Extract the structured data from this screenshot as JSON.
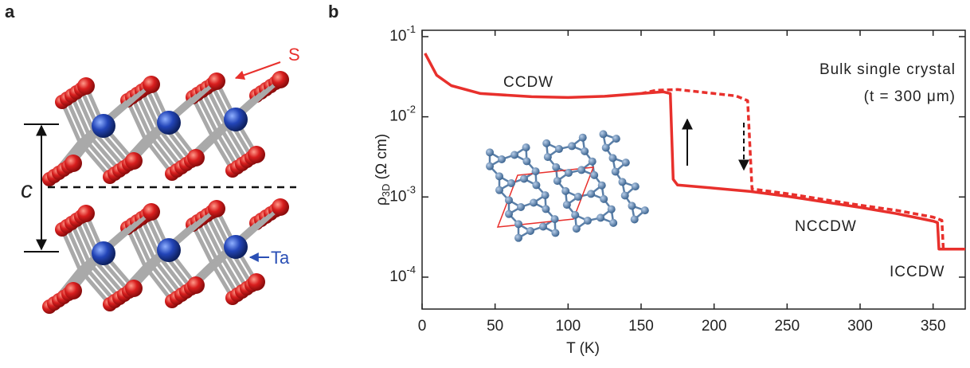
{
  "panel_a": {
    "label": "a",
    "atom_s": "S",
    "atom_ta": "Ta",
    "axis_c": "c"
  },
  "chart_data": {
    "type": "line",
    "panel_label": "b",
    "x_label": "T (K)",
    "y_label": "ρ_3D (Ω cm)",
    "xlim": [
      0,
      372
    ],
    "xticks": [
      0,
      50,
      100,
      150,
      200,
      250,
      300,
      350
    ],
    "ylim": [
      4e-05,
      0.12
    ],
    "log_y": true,
    "yticks": [
      {
        "value": 0.1,
        "label": "10^-1"
      },
      {
        "value": 0.01,
        "label": "10^-2"
      },
      {
        "value": 0.001,
        "label": "10^-3"
      },
      {
        "value": 0.0001,
        "label": "10^-4"
      }
    ],
    "annotations": [
      "CCDW",
      "NCCDW",
      "ICCDW",
      "Bulk single crystal",
      "(t = 300 μm)"
    ],
    "series": [
      {
        "color": "#e8302c",
        "linestyle": "solid",
        "x": [
          2,
          10,
          20,
          40,
          75,
          100,
          125,
          150,
          165,
          170,
          172,
          175,
          200,
          225,
          250,
          275,
          300,
          325,
          350,
          353,
          354,
          372
        ],
        "values": [
          0.062,
          0.033,
          0.0245,
          0.0195,
          0.0178,
          0.0174,
          0.018,
          0.0195,
          0.0205,
          0.0195,
          0.00166,
          0.00141,
          0.00129,
          0.00117,
          0.00102,
          0.00087,
          0.00074,
          0.00062,
          0.0005,
          0.00048,
          0.000224,
          0.000224
        ]
      },
      {
        "color": "#e8302c",
        "linestyle": "dashed",
        "x": [
          150,
          160,
          175,
          200,
          215,
          223,
          226,
          250,
          275,
          300,
          325,
          350,
          356,
          357
        ],
        "values": [
          0.0195,
          0.0214,
          0.0219,
          0.0195,
          0.0182,
          0.0159,
          0.00126,
          0.0011,
          0.00093,
          0.00079,
          0.00068,
          0.00056,
          0.00051,
          0.000224
        ]
      }
    ]
  }
}
